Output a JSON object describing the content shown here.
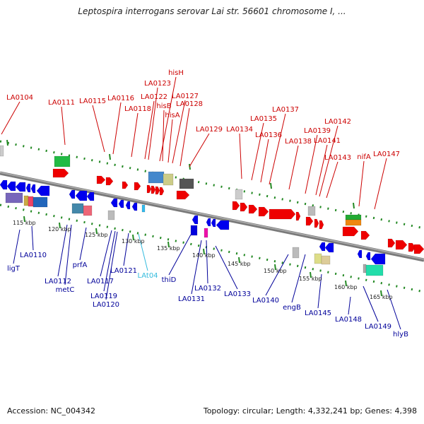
{
  "title": "Leptospira interrogans serovar Lai str. 56601 chromosome I, ...",
  "footer": {
    "accession": "Accession: NC_004342",
    "summary": "Topology: circular; Length: 4,332,241 bp; Genes: 4,398"
  },
  "colors": {
    "top_label": "#cc0000",
    "bottom_label": "#000099",
    "rna_label": "#33bbdd",
    "forward_gene": "#ee0000",
    "reverse_gene": "#0000ee",
    "backbone": "#888888",
    "tick": "#228822"
  },
  "kbp_ticks": [
    "115 kbp",
    "120 kbp",
    "125 kbp",
    "130 kbp",
    "135 kbp",
    "140 kbp",
    "145 kbp",
    "150 kbp",
    "155 kbp",
    "160 kbp",
    "165 kbp"
  ],
  "top_labels": [
    "LA0104",
    "LA0111",
    "LA0115",
    "LA0116",
    "LA0118",
    "LA0122",
    "LA0123",
    "hisH",
    "hisB",
    "hisA",
    "LA0127",
    "LA0128",
    "LA0129",
    "LA0134",
    "LA0135",
    "LA0136",
    "LA0137",
    "LA0138",
    "LA0139",
    "LA0141",
    "LA0142",
    "LA0143",
    "nifA",
    "LA0147"
  ],
  "bottom_labels": [
    "ligT",
    "LA0110",
    "LA0112",
    "metC",
    "prfA",
    "LA0117",
    "LA0119",
    "LA0120",
    "LA0121",
    "LAt04",
    "thiD",
    "LA0131",
    "LA0132",
    "LA0133",
    "LA0140",
    "engB",
    "LA0145",
    "LA0148",
    "LA0149",
    "hlyB"
  ]
}
